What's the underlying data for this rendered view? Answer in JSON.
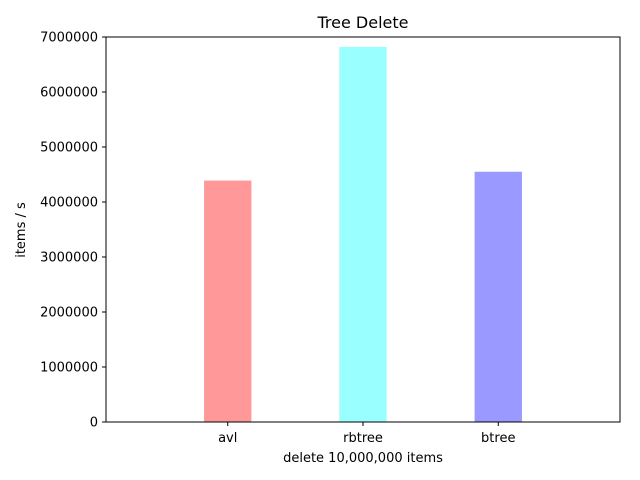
{
  "chart_data": {
    "type": "bar",
    "title": "Tree Delete",
    "xlabel": "delete 10,000,000 items",
    "ylabel": "items / s",
    "categories": [
      "avl",
      "rbtree",
      "btree"
    ],
    "values": [
      4390000,
      6820000,
      4550000
    ],
    "colors": [
      "#ff9999",
      "#99ffff",
      "#9999ff"
    ],
    "ylim": [
      0,
      7000000
    ],
    "yticks": [
      "0",
      "1000000",
      "2000000",
      "3000000",
      "4000000",
      "5000000",
      "6000000",
      "7000000"
    ],
    "grid": false,
    "legend": "none"
  }
}
